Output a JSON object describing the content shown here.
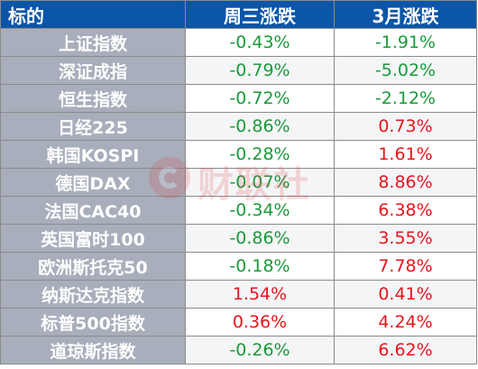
{
  "header": {
    "col_name": "标的",
    "col_wed": "周三涨跌",
    "col_march": "3月涨跌"
  },
  "rows": [
    {
      "name": "上证指数",
      "wed": "-0.43%",
      "march": "-1.91%"
    },
    {
      "name": "深证成指",
      "wed": "-0.79%",
      "march": "-5.02%"
    },
    {
      "name": "恒生指数",
      "wed": "-0.72%",
      "march": "-2.12%"
    },
    {
      "name": "日经225",
      "wed": "-0.86%",
      "march": "0.73%"
    },
    {
      "name": "韩国KOSPI",
      "wed": "-0.28%",
      "march": "1.61%"
    },
    {
      "name": "德国DAX",
      "wed": "-0.07%",
      "march": "8.86%"
    },
    {
      "name": "法国CAC40",
      "wed": "-0.34%",
      "march": "6.38%"
    },
    {
      "name": "英国富时100",
      "wed": "-0.86%",
      "march": "3.55%"
    },
    {
      "name": "欧洲斯托克50",
      "wed": "-0.18%",
      "march": "7.78%"
    },
    {
      "name": "纳斯达克指数",
      "wed": "1.54%",
      "march": "0.41%"
    },
    {
      "name": "标普500指数",
      "wed": "0.36%",
      "march": "4.24%"
    },
    {
      "name": "道琼斯指数",
      "wed": "-0.26%",
      "march": "6.62%"
    }
  ],
  "watermark": {
    "text": "财联社"
  },
  "colors": {
    "header_bg": "#0b56a8",
    "name_bg": "#a8aebb",
    "negative": "#1a9a3a",
    "positive": "#e8141b"
  }
}
